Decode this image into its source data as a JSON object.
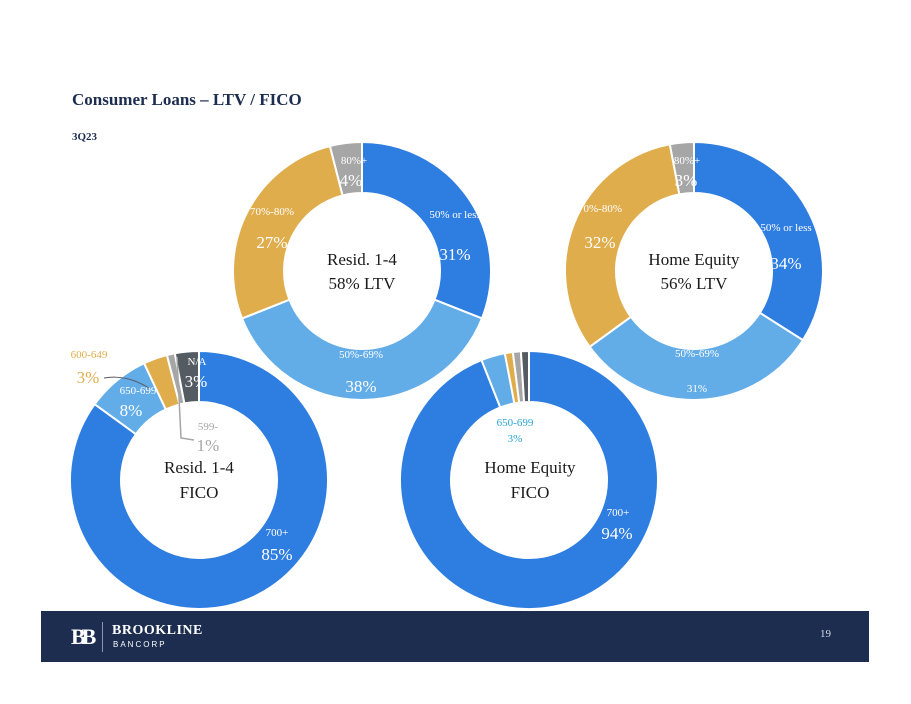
{
  "header": {
    "title": "Consumer Loans – LTV / FICO",
    "period": "3Q23"
  },
  "colors": {
    "blue": "#2e7de0",
    "light_blue": "#62ace8",
    "gold": "#e0ad4c",
    "gray": "#a6a6a6",
    "dark_gray": "#555b63",
    "navy": "#1c2d4f"
  },
  "chart_data": [
    {
      "type": "pie",
      "center_label": [
        "Resid. 1-4",
        "58% LTV"
      ],
      "slices": [
        {
          "label": "50% or less",
          "value": 31,
          "display": "31%",
          "color": "#2e7de0"
        },
        {
          "label": "50%-69%",
          "value": 38,
          "display": "38%",
          "color": "#62ace8"
        },
        {
          "label": "70%-80%",
          "value": 27,
          "display": "27%",
          "color": "#e0ad4c"
        },
        {
          "label": "80%+",
          "value": 4,
          "display": "4%",
          "color": "#a6a6a6"
        }
      ]
    },
    {
      "type": "pie",
      "center_label": [
        "Home Equity",
        "56% LTV"
      ],
      "slices": [
        {
          "label": "50% or less",
          "value": 34,
          "display": "34%",
          "color": "#2e7de0"
        },
        {
          "label": "50%-69%",
          "value": 31,
          "display": "31%",
          "color": "#62ace8"
        },
        {
          "label": "70%-80%",
          "value": 32,
          "display": "32%",
          "color": "#e0ad4c"
        },
        {
          "label": "80%+",
          "value": 3,
          "display": "3%",
          "color": "#a6a6a6"
        }
      ]
    },
    {
      "type": "pie",
      "center_label": [
        "Resid. 1-4",
        "FICO"
      ],
      "slices": [
        {
          "label": "700+",
          "value": 85,
          "display": "85%",
          "color": "#2e7de0"
        },
        {
          "label": "650-699",
          "value": 8,
          "display": "8%",
          "color": "#62ace8"
        },
        {
          "label": "600-649",
          "value": 3,
          "display": "3%",
          "color": "#e0ad4c"
        },
        {
          "label": "599-",
          "value": 1,
          "display": "1%",
          "color": "#a6a6a6"
        },
        {
          "label": "N/A",
          "value": 3,
          "display": "3%",
          "color": "#555b63"
        }
      ]
    },
    {
      "type": "pie",
      "center_label": [
        "Home Equity",
        "FICO"
      ],
      "slices": [
        {
          "label": "700+",
          "value": 94,
          "display": "94%",
          "color": "#2e7de0"
        },
        {
          "label": "650-699",
          "value": 3,
          "display": "3%",
          "color": "#62ace8"
        },
        {
          "value": 1,
          "color": "#e0ad4c"
        },
        {
          "value": 1,
          "color": "#a6a6a6"
        },
        {
          "value": 1,
          "color": "#555b63"
        }
      ]
    }
  ],
  "footer": {
    "brand": "BROOKLINE",
    "brand_sub": "BANCORP",
    "logo_mark": "BB",
    "page_number": "19"
  }
}
